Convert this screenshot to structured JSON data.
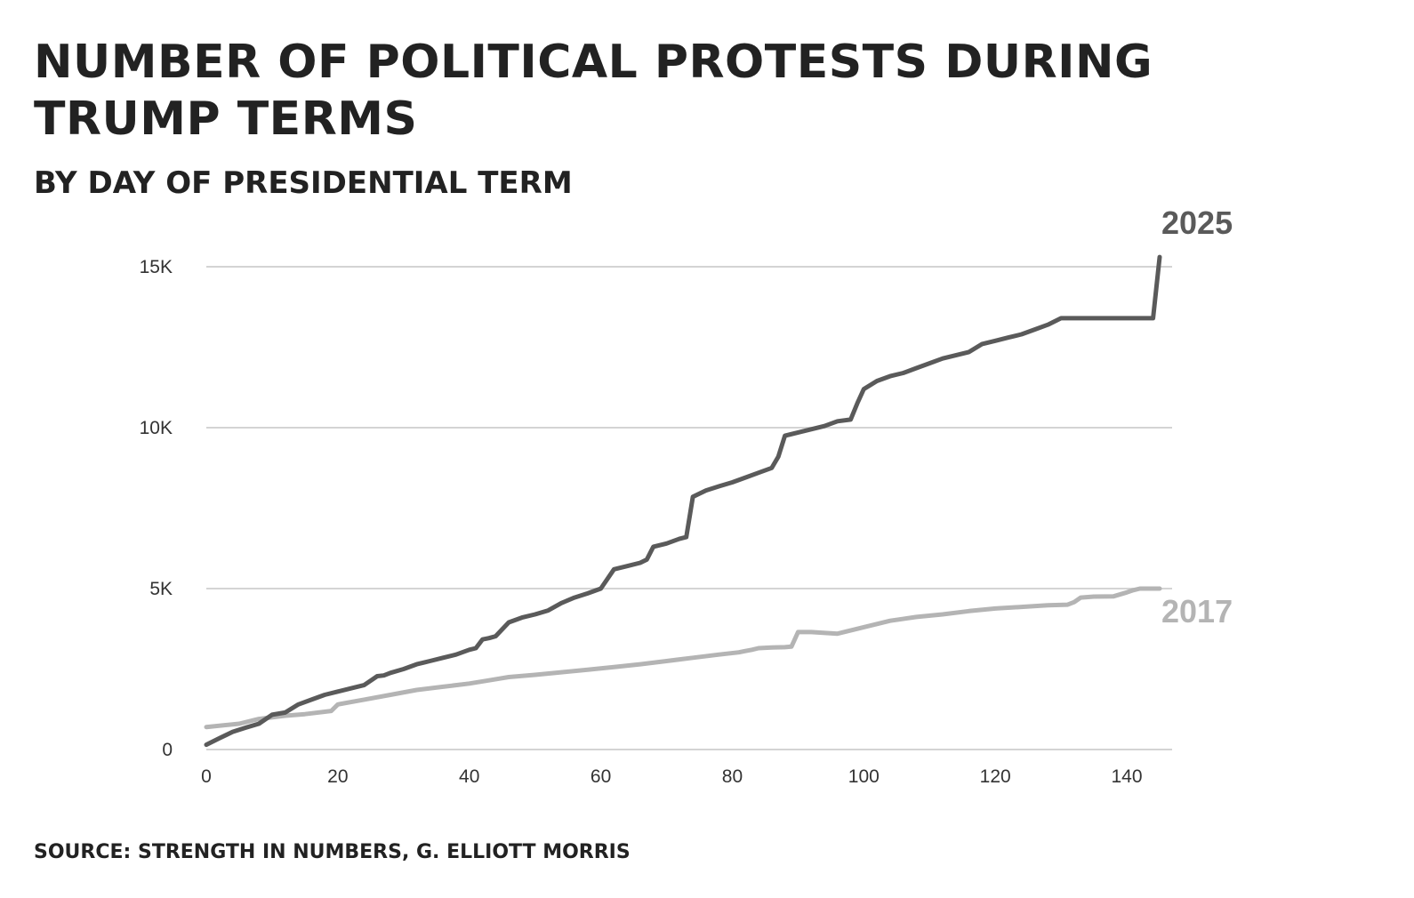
{
  "title": "NUMBER OF POLITICAL PROTESTS DURING TRUMP TERMS",
  "subtitle": "BY DAY OF PRESIDENTIAL TERM",
  "source": "SOURCE: STRENGTH IN NUMBERS, G. ELLIOTT MORRIS",
  "colors": {
    "series_2025": "#5a5a5a",
    "series_2017": "#b4b4b4",
    "grid": "#d4d4d4",
    "text": "#222222"
  },
  "chart_data": {
    "type": "line",
    "title": "NUMBER OF POLITICAL PROTESTS DURING TRUMP TERMS",
    "subtitle": "BY DAY OF PRESIDENTIAL TERM",
    "xlim": [
      0,
      145
    ],
    "ylim": [
      0,
      15000
    ],
    "xticks": [
      0,
      20,
      40,
      60,
      80,
      100,
      120,
      140
    ],
    "xtick_labels": [
      "0",
      "20",
      "40",
      "60",
      "80",
      "100",
      "120",
      "140"
    ],
    "yticks": [
      0,
      5000,
      10000,
      15000
    ],
    "ytick_labels": [
      "0",
      "5K",
      "10K",
      "15K"
    ],
    "grid": "horizontal",
    "legend": "direct labels at line ends",
    "series": [
      {
        "name": "2025",
        "color": "#5a5a5a",
        "x": [
          0,
          2,
          4,
          6,
          8,
          10,
          12,
          14,
          16,
          18,
          20,
          22,
          24,
          26,
          27,
          28,
          30,
          32,
          33,
          34,
          36,
          38,
          40,
          41,
          42,
          43,
          44,
          46,
          48,
          50,
          52,
          54,
          56,
          58,
          60,
          62,
          64,
          66,
          67,
          68,
          70,
          72,
          73,
          74,
          76,
          78,
          80,
          82,
          84,
          86,
          87,
          88,
          90,
          92,
          94,
          96,
          98,
          99,
          100,
          102,
          104,
          106,
          108,
          110,
          112,
          114,
          116,
          118,
          120,
          122,
          124,
          126,
          128,
          130,
          135,
          140,
          143,
          144,
          145
        ],
        "values": [
          150,
          350,
          550,
          680,
          800,
          1080,
          1150,
          1400,
          1550,
          1700,
          1800,
          1900,
          2000,
          2280,
          2300,
          2380,
          2500,
          2650,
          2700,
          2750,
          2850,
          2950,
          3100,
          3150,
          3420,
          3460,
          3520,
          3950,
          4100,
          4200,
          4320,
          4550,
          4720,
          4850,
          5000,
          5600,
          5700,
          5800,
          5900,
          6300,
          6400,
          6550,
          6600,
          7850,
          8050,
          8180,
          8300,
          8450,
          8600,
          8750,
          9100,
          9750,
          9850,
          9950,
          10050,
          10200,
          10250,
          10750,
          11200,
          11450,
          11600,
          11700,
          11850,
          12000,
          12150,
          12250,
          12350,
          12600,
          12700,
          12800,
          12900,
          13050,
          13200,
          13400,
          13400,
          13400,
          13400,
          13400,
          15300
        ]
      },
      {
        "name": "2017",
        "color": "#b4b4b4",
        "x": [
          0,
          5,
          8,
          12,
          15,
          19,
          20,
          24,
          28,
          32,
          36,
          40,
          43,
          46,
          50,
          54,
          58,
          62,
          66,
          70,
          74,
          78,
          81,
          82,
          83,
          84,
          86,
          88,
          89,
          90,
          92,
          96,
          100,
          104,
          108,
          112,
          116,
          120,
          124,
          128,
          131,
          132,
          133,
          135,
          138,
          140,
          141,
          142,
          145
        ],
        "values": [
          700,
          800,
          950,
          1050,
          1100,
          1200,
          1400,
          1550,
          1700,
          1850,
          1950,
          2050,
          2150,
          2250,
          2320,
          2400,
          2480,
          2560,
          2650,
          2750,
          2850,
          2950,
          3020,
          3060,
          3100,
          3150,
          3170,
          3180,
          3200,
          3650,
          3650,
          3600,
          3800,
          4000,
          4120,
          4200,
          4300,
          4380,
          4430,
          4480,
          4500,
          4580,
          4720,
          4750,
          4760,
          4880,
          4950,
          5000,
          5000
        ]
      }
    ]
  }
}
